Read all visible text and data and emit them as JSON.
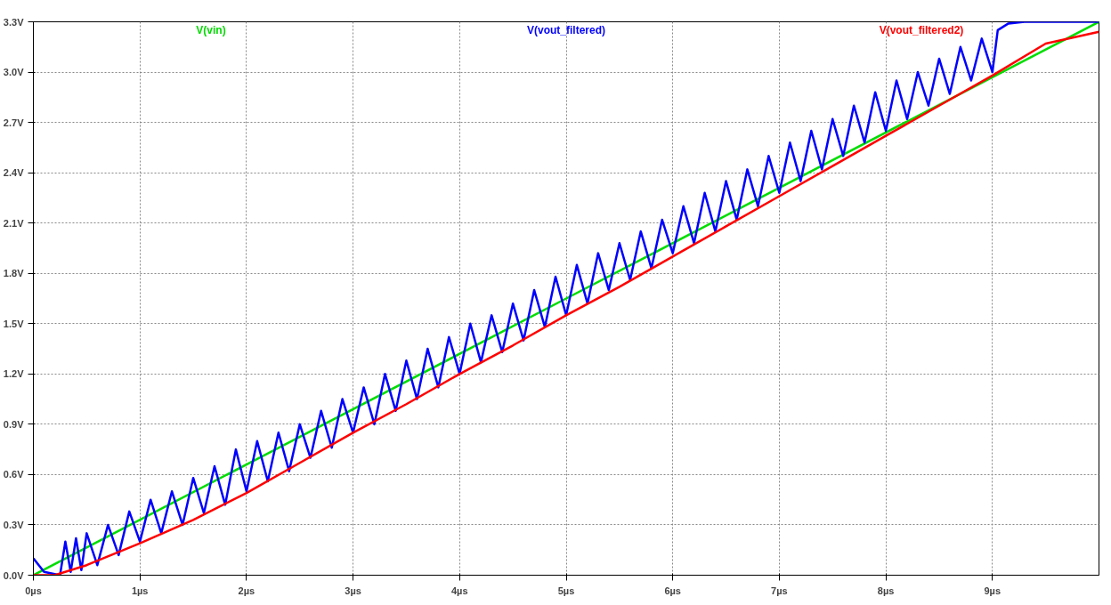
{
  "chart_data": {
    "type": "line",
    "xlim": [
      0,
      10
    ],
    "ylim": [
      0,
      3.3
    ],
    "xticks": [
      {
        "value": 0,
        "label": "0µs"
      },
      {
        "value": 1,
        "label": "1µs"
      },
      {
        "value": 2,
        "label": "2µs"
      },
      {
        "value": 3,
        "label": "3µs"
      },
      {
        "value": 4,
        "label": "4µs"
      },
      {
        "value": 5,
        "label": "5µs"
      },
      {
        "value": 6,
        "label": "6µs"
      },
      {
        "value": 7,
        "label": "7µs"
      },
      {
        "value": 8,
        "label": "8µs"
      },
      {
        "value": 9,
        "label": "9µs"
      }
    ],
    "yticks": [
      {
        "value": 0,
        "label": "0.0V"
      },
      {
        "value": 0.3,
        "label": "0.3V"
      },
      {
        "value": 0.6,
        "label": "0.6V"
      },
      {
        "value": 0.9,
        "label": "0.9V"
      },
      {
        "value": 1.2,
        "label": "1.2V"
      },
      {
        "value": 1.5,
        "label": "1.5V"
      },
      {
        "value": 1.8,
        "label": "1.8V"
      },
      {
        "value": 2.1,
        "label": "2.1V"
      },
      {
        "value": 2.4,
        "label": "2.4V"
      },
      {
        "value": 2.7,
        "label": "2.7V"
      },
      {
        "value": 3.0,
        "label": "3.0V"
      },
      {
        "value": 3.3,
        "label": "3.3V"
      }
    ],
    "grid": true,
    "line_style": "solid",
    "series": [
      {
        "name": "V(vin)",
        "color": "#00dd00",
        "x": [
          0,
          5,
          10
        ],
        "values": [
          0,
          1.65,
          3.3
        ]
      },
      {
        "name": "V(vout_filtered)",
        "color": "#0000ff",
        "x": [
          0,
          0.1,
          0.25,
          0.3,
          0.35,
          0.4,
          0.45,
          0.5,
          0.6,
          0.7,
          0.8,
          0.9,
          1.0,
          1.1,
          1.2,
          1.3,
          1.4,
          1.5,
          1.6,
          1.7,
          1.8,
          1.9,
          2.0,
          2.1,
          2.2,
          2.3,
          2.4,
          2.5,
          2.6,
          2.7,
          2.8,
          2.9,
          3.0,
          3.1,
          3.2,
          3.3,
          3.4,
          3.5,
          3.6,
          3.7,
          3.8,
          3.9,
          4.0,
          4.1,
          4.2,
          4.3,
          4.4,
          4.5,
          4.6,
          4.7,
          4.8,
          4.9,
          5.0,
          5.1,
          5.2,
          5.3,
          5.4,
          5.5,
          5.6,
          5.7,
          5.8,
          5.9,
          6.0,
          6.1,
          6.2,
          6.3,
          6.4,
          6.5,
          6.6,
          6.7,
          6.8,
          6.9,
          7.0,
          7.1,
          7.2,
          7.3,
          7.4,
          7.5,
          7.6,
          7.7,
          7.8,
          7.9,
          8.0,
          8.1,
          8.2,
          8.3,
          8.4,
          8.5,
          8.6,
          8.7,
          8.8,
          8.9,
          9.0,
          9.05,
          9.15,
          9.3,
          10
        ],
        "values": [
          0.1,
          0.02,
          0.0,
          0.2,
          0.02,
          0.22,
          0.03,
          0.25,
          0.06,
          0.3,
          0.12,
          0.38,
          0.2,
          0.45,
          0.25,
          0.5,
          0.3,
          0.58,
          0.37,
          0.65,
          0.42,
          0.75,
          0.5,
          0.8,
          0.56,
          0.85,
          0.62,
          0.9,
          0.7,
          0.98,
          0.76,
          1.05,
          0.85,
          1.12,
          0.9,
          1.2,
          0.98,
          1.28,
          1.05,
          1.35,
          1.12,
          1.42,
          1.2,
          1.5,
          1.27,
          1.55,
          1.33,
          1.62,
          1.4,
          1.7,
          1.48,
          1.78,
          1.55,
          1.85,
          1.62,
          1.92,
          1.7,
          1.98,
          1.76,
          2.05,
          1.83,
          2.12,
          1.92,
          2.2,
          1.98,
          2.28,
          2.05,
          2.35,
          2.12,
          2.42,
          2.2,
          2.5,
          2.28,
          2.58,
          2.35,
          2.65,
          2.42,
          2.72,
          2.5,
          2.8,
          2.58,
          2.88,
          2.65,
          2.95,
          2.72,
          3.0,
          2.8,
          3.08,
          2.87,
          3.15,
          2.95,
          3.2,
          3.0,
          3.25,
          3.29,
          3.3,
          3.3
        ]
      },
      {
        "name": "V(vout_filtered2)",
        "color": "#ff0000",
        "x": [
          0,
          0.2,
          0.5,
          1,
          1.5,
          2,
          2.5,
          3,
          3.5,
          4,
          4.5,
          5,
          5.5,
          6,
          6.5,
          7,
          7.5,
          8,
          8.5,
          9,
          9.5,
          10
        ],
        "values": [
          0,
          0.0,
          0.06,
          0.19,
          0.33,
          0.49,
          0.67,
          0.85,
          1.02,
          1.2,
          1.37,
          1.55,
          1.72,
          1.9,
          2.08,
          2.26,
          2.44,
          2.62,
          2.8,
          2.98,
          3.17,
          3.24
        ]
      }
    ]
  }
}
